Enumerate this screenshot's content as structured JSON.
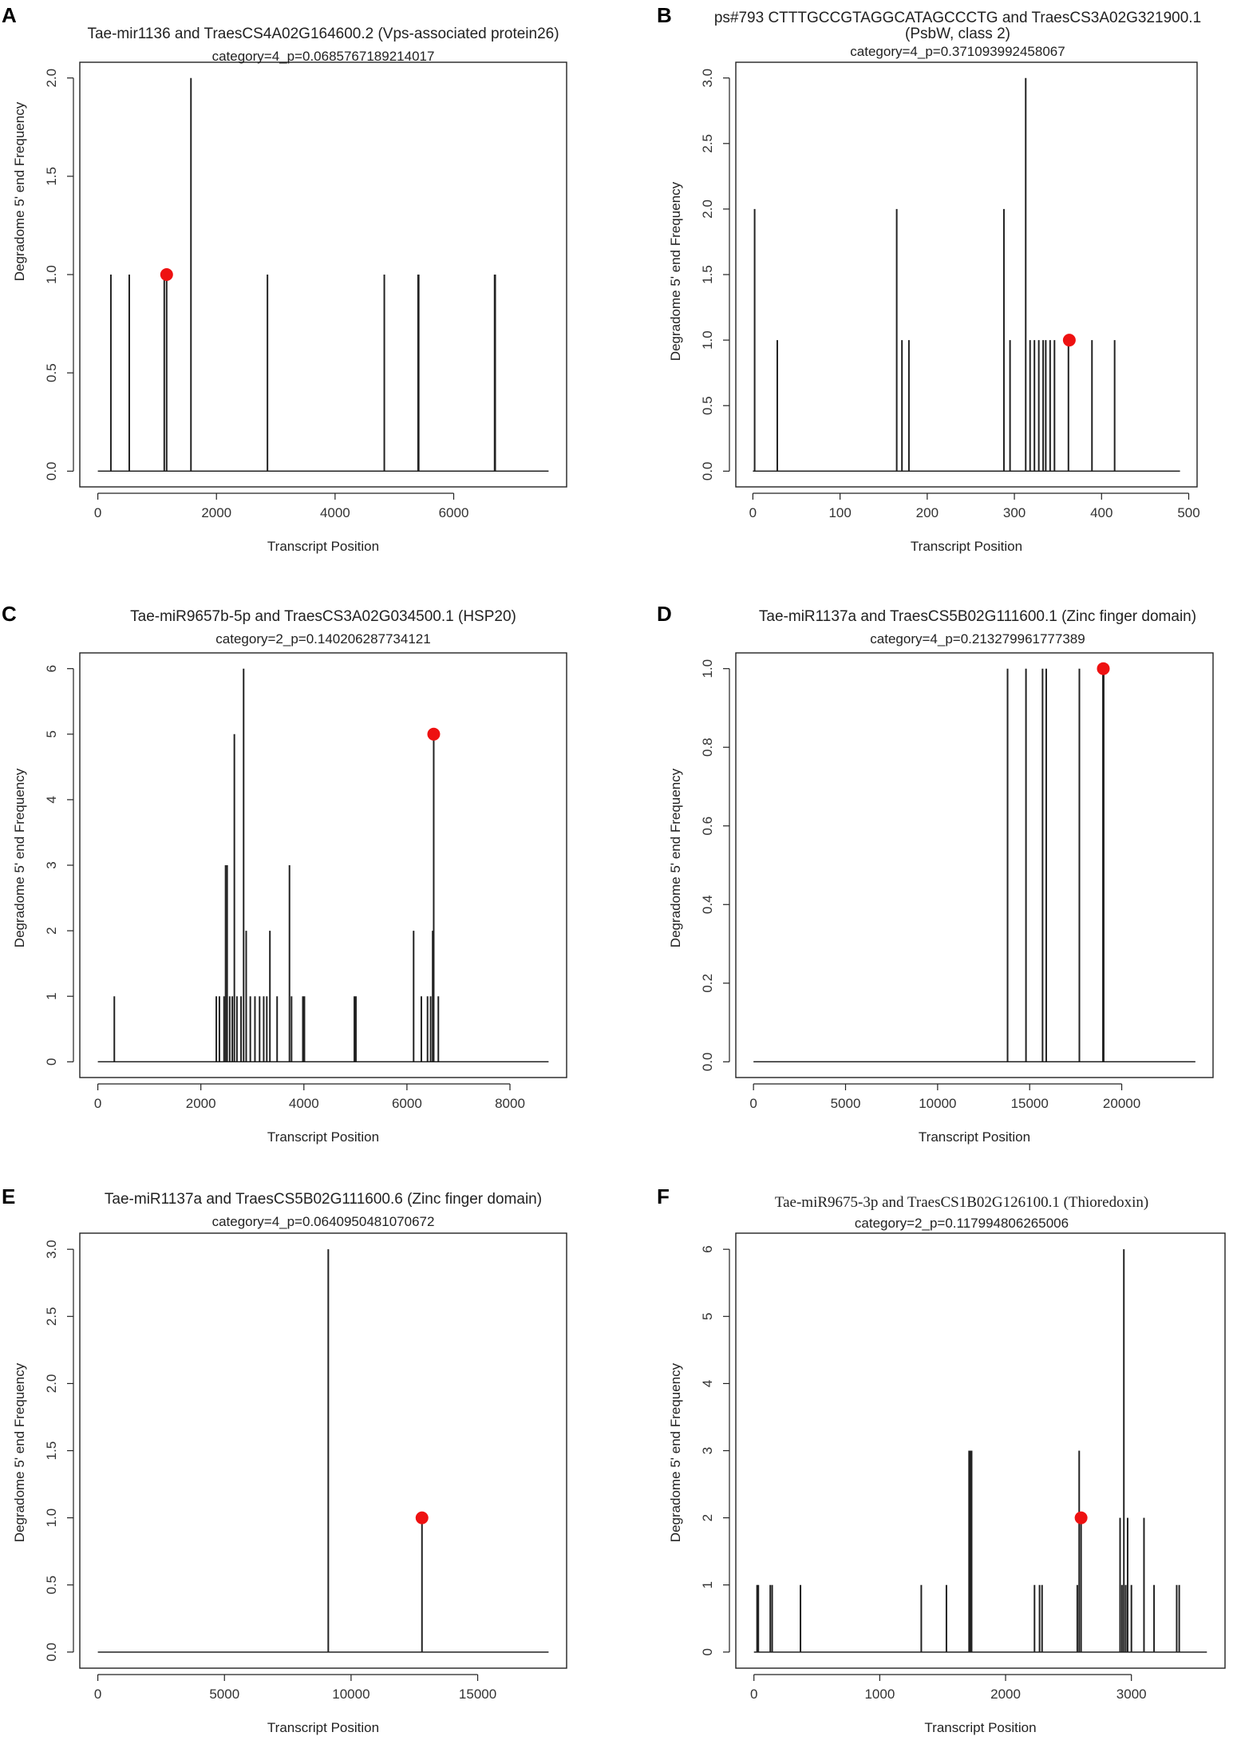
{
  "chart_data": [
    {
      "panel": "A",
      "type": "line",
      "title": "Tae-mir1136 and TraesCS4A02G164600.2 (Vps-associated protein26)",
      "subtitle": "category=4_p=0.0685767189214017",
      "xlabel": "Transcript Position",
      "ylabel": "Degradome 5' end Frequency",
      "xlim": [
        0,
        7600
      ],
      "ylim": [
        0,
        2
      ],
      "xticks": [
        0,
        2000,
        4000,
        6000
      ],
      "yticks": [
        0.0,
        0.5,
        1.0,
        1.5,
        2.0
      ],
      "series": [
        {
          "name": "degradome",
          "x": [
            220,
            530,
            1120,
            1160,
            1570,
            2860,
            4830,
            5400,
            5410,
            6690,
            6700
          ],
          "y": [
            1,
            1,
            1,
            1,
            2,
            1,
            1,
            1,
            1,
            1,
            1
          ]
        }
      ],
      "target": {
        "x": 1160,
        "y": 1
      }
    },
    {
      "panel": "B",
      "type": "line",
      "title": "ps#793 CTTTGCCGTAGGCATAGCCCTG and TraesCS3A02G321900.1",
      "title_line2": "(PsbW, class 2)",
      "subtitle": "category=4_p=0.371093992458067",
      "xlabel": "Transcript Position",
      "ylabel": "Degradome 5' end Frequency",
      "xlim": [
        0,
        490
      ],
      "ylim": [
        0,
        3
      ],
      "xticks": [
        0,
        100,
        200,
        300,
        400,
        500
      ],
      "yticks": [
        0.0,
        0.5,
        1.0,
        1.5,
        2.0,
        2.5,
        3.0
      ],
      "series": [
        {
          "name": "degradome",
          "x": [
            2,
            28,
            165,
            171,
            179,
            288,
            295,
            313,
            318,
            323,
            328,
            333,
            336,
            341,
            346,
            362,
            389,
            415
          ],
          "y": [
            2,
            1,
            2,
            1,
            1,
            2,
            1,
            3,
            1,
            1,
            1,
            1,
            1,
            1,
            1,
            1,
            1,
            1
          ]
        }
      ],
      "target": {
        "x": 363,
        "y": 1
      }
    },
    {
      "panel": "C",
      "type": "line",
      "title": "Tae-miR9657b-5p and TraesCS3A02G034500.1 (HSP20)",
      "subtitle": "category=2_p=0.140206287734121",
      "xlabel": "Transcript Position",
      "ylabel": "Degradome 5' end Frequency",
      "xlim": [
        0,
        8750
      ],
      "ylim": [
        0,
        6
      ],
      "xticks": [
        0,
        2000,
        4000,
        6000,
        8000
      ],
      "yticks": [
        0,
        1,
        2,
        3,
        4,
        5,
        6
      ],
      "series": [
        {
          "name": "degradome",
          "x": [
            320,
            2300,
            2360,
            2450,
            2480,
            2510,
            2560,
            2610,
            2650,
            2700,
            2780,
            2830,
            2880,
            2960,
            3050,
            3140,
            3220,
            3280,
            3340,
            3480,
            3720,
            3760,
            3980,
            4010,
            4980,
            5010,
            6130,
            6280,
            6400,
            6460,
            6500,
            6520,
            6610
          ],
          "y": [
            1,
            1,
            1,
            1,
            3,
            3,
            1,
            1,
            5,
            1,
            1,
            6,
            2,
            1,
            1,
            1,
            1,
            1,
            2,
            1,
            3,
            1,
            1,
            1,
            1,
            1,
            2,
            1,
            1,
            1,
            2,
            5,
            1
          ]
        }
      ],
      "target": {
        "x": 6520,
        "y": 5
      }
    },
    {
      "panel": "D",
      "type": "line",
      "title": "Tae-miR1137a and TraesCS5B02G111600.1 (Zinc finger domain)",
      "subtitle": "category=4_p=0.213279961777389",
      "xlabel": "Transcript Position",
      "ylabel": "Degradome 5' end Frequency",
      "xlim": [
        0,
        24000
      ],
      "ylim": [
        0,
        1
      ],
      "xticks": [
        0,
        5000,
        10000,
        15000,
        20000
      ],
      "yticks": [
        0.0,
        0.2,
        0.4,
        0.6,
        0.8,
        1.0
      ],
      "series": [
        {
          "name": "degradome",
          "x": [
            13800,
            14800,
            15700,
            15900,
            17700,
            18980,
            19020
          ],
          "y": [
            1,
            1,
            1,
            1,
            1,
            1,
            1
          ]
        }
      ],
      "target": {
        "x": 19000,
        "y": 1
      }
    },
    {
      "panel": "E",
      "type": "line",
      "title": "Tae-miR1137a and TraesCS5B02G111600.6 (Zinc finger domain)",
      "subtitle": "category=4_p=0.0640950481070672",
      "xlabel": "Transcript Position",
      "ylabel": "Degradome 5' end Frequency",
      "xlim": [
        0,
        17800
      ],
      "ylim": [
        0,
        3
      ],
      "xticks": [
        0,
        5000,
        10000,
        15000
      ],
      "yticks": [
        0.0,
        0.5,
        1.0,
        1.5,
        2.0,
        2.5,
        3.0
      ],
      "series": [
        {
          "name": "degradome",
          "x": [
            9100,
            12800
          ],
          "y": [
            3,
            1
          ]
        }
      ],
      "target": {
        "x": 12800,
        "y": 1
      }
    },
    {
      "panel": "F",
      "type": "line",
      "title": "Tae-miR9675-3p and TraesCS1B02G126100.1 (Thioredoxin)",
      "subtitle": "category=2_p=0.117994806265006",
      "xlabel": "Transcript Position",
      "ylabel": "Degradome 5' end Frequency",
      "xlim": [
        0,
        3600
      ],
      "ylim": [
        0,
        6
      ],
      "xticks": [
        0,
        1000,
        2000,
        3000
      ],
      "yticks": [
        0,
        1,
        2,
        3,
        4,
        5,
        6
      ],
      "series": [
        {
          "name": "degradome",
          "x": [
            25,
            35,
            130,
            145,
            370,
            1330,
            1530,
            1710,
            1720,
            1730,
            2230,
            2270,
            2290,
            2570,
            2585,
            2600,
            2910,
            2925,
            2940,
            2955,
            2970,
            3000,
            3100,
            3180,
            3360,
            3380
          ],
          "y": [
            1,
            1,
            1,
            1,
            1,
            1,
            1,
            3,
            3,
            3,
            1,
            1,
            1,
            1,
            3,
            2,
            2,
            1,
            6,
            1,
            2,
            1,
            2,
            1,
            1,
            1
          ]
        }
      ],
      "target": {
        "x": 2600,
        "y": 2
      }
    }
  ]
}
